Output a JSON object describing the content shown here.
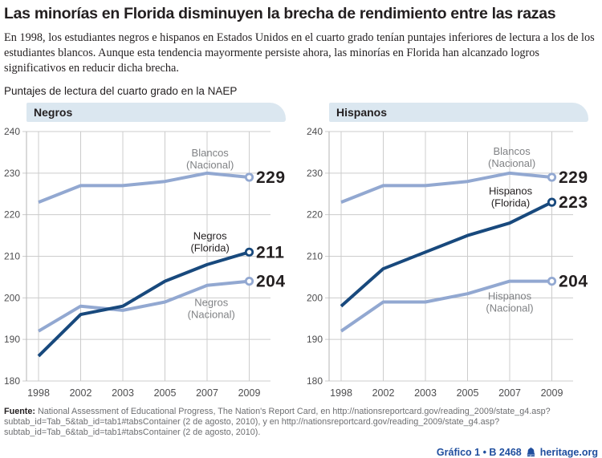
{
  "page": {
    "title": "Las minorías en Florida disminuyen la brecha de rendimiento entre las razas",
    "intro": "En 1998, los estudiantes negros e hispanos en Estados Unidos en el cuarto grado tenían puntajes inferiores de lectura a los de los estudiantes blancos. Aunque esta tendencia mayormente persiste ahora, las minorías en Florida han alcanzado logros significativos en reducir dicha brecha.",
    "subtitle": "Puntajes de lectura del cuarto grado en la NAEP",
    "panel_header_bg": "#dbe7f0"
  },
  "chart_data": [
    {
      "type": "line",
      "title": "Negros",
      "categories": [
        "1998",
        "2002",
        "2003",
        "2005",
        "2007",
        "2009"
      ],
      "xlabel": "",
      "ylabel": "",
      "ylim": [
        180,
        240
      ],
      "yticks": [
        240,
        230,
        220,
        210,
        200,
        190,
        180
      ],
      "grid": true,
      "legend_position": "inline-annotations",
      "series": [
        {
          "name": "Blancos (Nacional)",
          "color": "#92a8d1",
          "values": [
            223,
            227,
            227,
            228,
            230,
            229
          ],
          "end_label": "229"
        },
        {
          "name": "Negros (Nacional)",
          "color": "#92a8d1",
          "values": [
            192,
            198,
            197,
            199,
            203,
            204
          ],
          "end_label": "204"
        },
        {
          "name": "Negros (Florida)",
          "color": "#18497d",
          "values": [
            186,
            196,
            198,
            204,
            208,
            211
          ],
          "end_label": "211"
        }
      ],
      "annotations": [
        {
          "lines": [
            "Blancos",
            "(Nacional)"
          ],
          "x": 4.07,
          "y": 233.4,
          "color": "#808285"
        },
        {
          "lines": [
            "Negros",
            "(Florida)"
          ],
          "x": 4.07,
          "y": 213.5,
          "color": "#231f20"
        },
        {
          "lines": [
            "Negros",
            "(Nacional)"
          ],
          "x": 4.1,
          "y": 197.5,
          "color": "#808285"
        }
      ]
    },
    {
      "type": "line",
      "title": "Hispanos",
      "categories": [
        "1998",
        "2002",
        "2003",
        "2005",
        "2007",
        "2009"
      ],
      "xlabel": "",
      "ylabel": "",
      "ylim": [
        180,
        240
      ],
      "yticks": [
        240,
        230,
        220,
        210,
        200,
        190,
        180
      ],
      "grid": true,
      "legend_position": "inline-annotations",
      "series": [
        {
          "name": "Blancos (Nacional)",
          "color": "#92a8d1",
          "values": [
            223,
            227,
            227,
            228,
            230,
            229
          ],
          "end_label": "229"
        },
        {
          "name": "Hispanos (Nacional)",
          "color": "#92a8d1",
          "values": [
            192,
            199,
            199,
            201,
            204,
            204
          ],
          "end_label": "204"
        },
        {
          "name": "Hispanos (Florida)",
          "color": "#18497d",
          "values": [
            198,
            207,
            211,
            215,
            218,
            223
          ],
          "end_label": "223"
        }
      ],
      "annotations": [
        {
          "lines": [
            "Blancos",
            "(Nacional)"
          ],
          "x": 4.05,
          "y": 233.8,
          "color": "#808285"
        },
        {
          "lines": [
            "Hispanos",
            "(Florida)"
          ],
          "x": 4.02,
          "y": 224.3,
          "color": "#231f20"
        },
        {
          "lines": [
            "Hispanos",
            "(Nacional)"
          ],
          "x": 4.0,
          "y": 199.0,
          "color": "#808285"
        }
      ]
    }
  ],
  "footer": {
    "source_label": "Fuente:",
    "source_text": "National Assessment of Educational Progress, The Nation's Report Card, en http://nationsreportcard.gov/reading_2009/state_g4.asp?subtab_id=Tab_5&tab_id=tab1#tabsContainer (2 de agosto, 2010), y en http://nationsreportcard.gov/reading_2009/state_g4.asp?subtab_id=Tab_6&tab_id=tab1#tabsContainer (2 de agosto, 2010).",
    "chart_ref": "Gráfico 1 • B 2468",
    "brand": "heritage.org",
    "brand_icon": "liberty-bell-icon",
    "accent_color": "#1f4e9e"
  },
  "style_colors": {
    "dark_line": "#18497d",
    "light_line": "#92a8d1",
    "gridline": "#cccccc",
    "axis": "#b5b5b5",
    "tick_text": "#4d4d4f",
    "value_label": "#231f20",
    "gray_annotation": "#808285",
    "source_gray": "#6d6e71"
  }
}
